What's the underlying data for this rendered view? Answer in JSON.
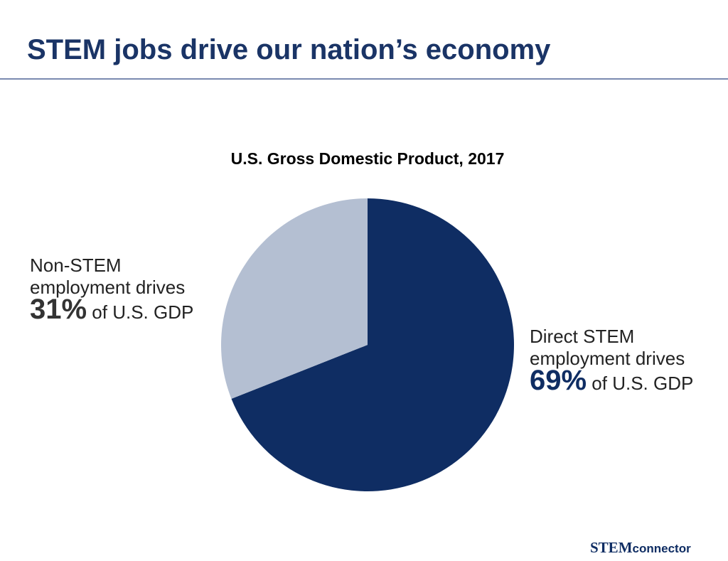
{
  "header": {
    "title": "STEM jobs drive our nation’s economy"
  },
  "chart_data": {
    "type": "pie",
    "title": "U.S. Gross Domestic Product, 2017",
    "categories": [
      "Direct STEM employment drives",
      "Non-STEM employment drives"
    ],
    "values": [
      69,
      31
    ],
    "value_labels": [
      "69%",
      "31%"
    ],
    "label_notes": [
      "of U.S. GDP",
      "of U.S. GDP"
    ],
    "colors": [
      "#0f2d63",
      "#b4bfd2"
    ]
  },
  "footer": {
    "logo_bold": "STEM",
    "logo_rest": "connector"
  }
}
